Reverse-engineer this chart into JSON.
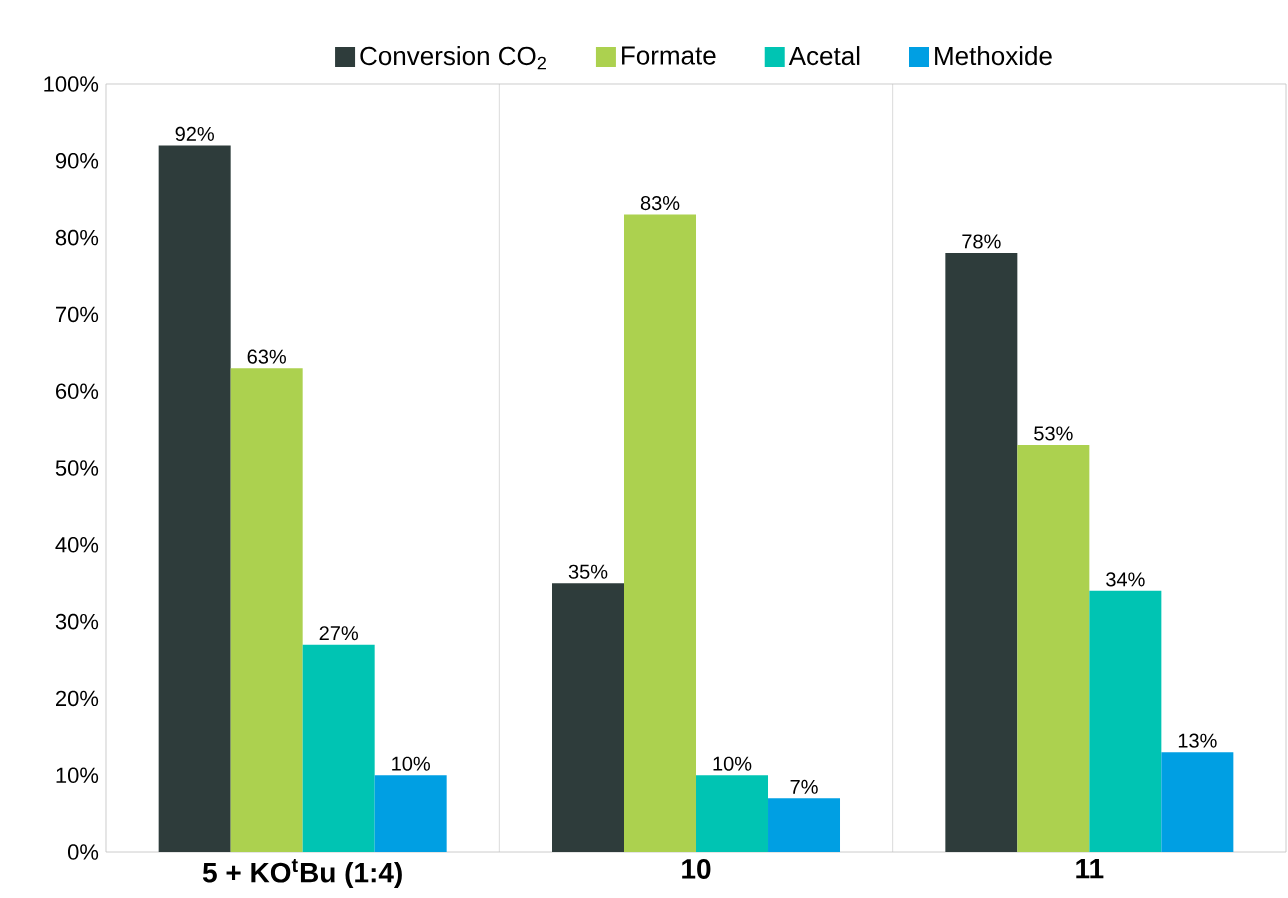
{
  "chart_data": {
    "type": "bar",
    "categories": [
      "5 + KO$^{t}$Bu (1:4)",
      "10",
      "11"
    ],
    "series": [
      {
        "name": "Conversion CO$_{2}$",
        "color": "#2e3c3b",
        "values": [
          92,
          35,
          78
        ],
        "value_labels": [
          "92%",
          "35%",
          "78%"
        ]
      },
      {
        "name": "Formate",
        "color": "#acd14f",
        "values": [
          63,
          83,
          53
        ],
        "value_labels": [
          "63%",
          "83%",
          "53%"
        ]
      },
      {
        "name": "Acetal",
        "color": "#00c4b3",
        "values": [
          27,
          10,
          34
        ],
        "value_labels": [
          "27%",
          "10%",
          "34%"
        ]
      },
      {
        "name": "Methoxide",
        "color": "#009fe3",
        "values": [
          10,
          7,
          13
        ],
        "value_labels": [
          "10%",
          "7%",
          "13%"
        ]
      }
    ],
    "ylim": [
      0,
      100
    ],
    "yticks": [
      {
        "value": 0,
        "label": "0%"
      },
      {
        "value": 10,
        "label": "10%"
      },
      {
        "value": 20,
        "label": "20%"
      },
      {
        "value": 30,
        "label": "30%"
      },
      {
        "value": 40,
        "label": "40%"
      },
      {
        "value": 50,
        "label": "50%"
      },
      {
        "value": 60,
        "label": "60%"
      },
      {
        "value": 70,
        "label": "70%"
      },
      {
        "value": 80,
        "label": "80%"
      },
      {
        "value": 90,
        "label": "90%"
      },
      {
        "value": 100,
        "label": "100%"
      }
    ],
    "grid": "x",
    "legend": "top"
  }
}
